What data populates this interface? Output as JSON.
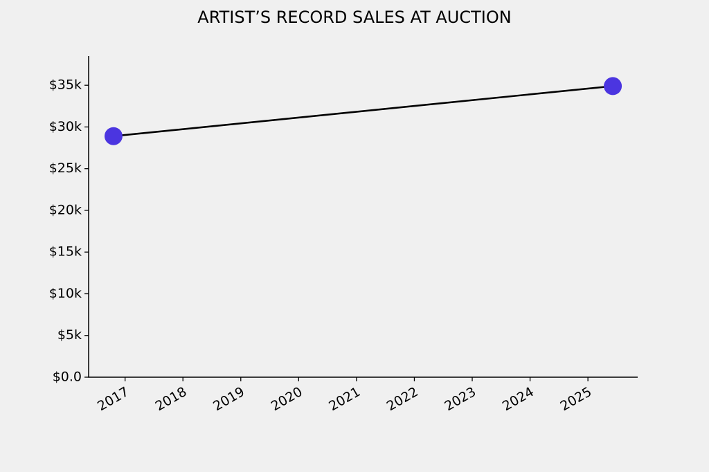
{
  "chart_data": {
    "type": "line",
    "title": "ARTIST’S RECORD SALES AT AUCTION",
    "x": [
      2016.8,
      2025.43
    ],
    "series": [
      {
        "values": [
          28900,
          34900
        ],
        "color": "#4b35e0",
        "line_color": "#000000"
      }
    ],
    "xlim": [
      2016.37,
      2025.86
    ],
    "xticks": [
      2017,
      2018,
      2019,
      2020,
      2021,
      2022,
      2023,
      2024,
      2025
    ],
    "ylim": [
      0,
      38500
    ],
    "yticks": [
      {
        "value": 0,
        "label": "$0.0"
      },
      {
        "value": 5000,
        "label": "$5k"
      },
      {
        "value": 10000,
        "label": "$10k"
      },
      {
        "value": 15000,
        "label": "$15k"
      },
      {
        "value": 20000,
        "label": "$20k"
      },
      {
        "value": 25000,
        "label": "$25k"
      },
      {
        "value": 30000,
        "label": "$30k"
      },
      {
        "value": 35000,
        "label": "$35k"
      }
    ],
    "grid": false
  }
}
